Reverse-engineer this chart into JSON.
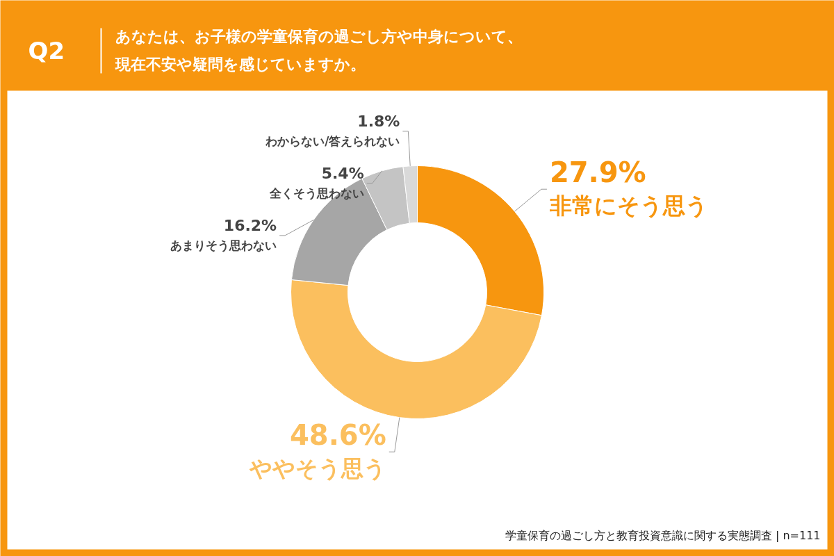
{
  "chart_data": {
    "type": "donut",
    "title": "Q2",
    "subtitle": "あなたは、お子様の学童保育の過ごし方や中身について、現在不安や疑問を感じていますか。",
    "categories": [
      "非常にそう思う",
      "ややそう思う",
      "あまりそう思わない",
      "全くそう思わない",
      "わからない/答えられない"
    ],
    "values": [
      27.9,
      48.6,
      16.2,
      5.4,
      1.8
    ],
    "colors": [
      "#f7960f",
      "#fbbf5e",
      "#a6a6a6",
      "#c4c4c4",
      "#d9d9d9"
    ],
    "value_labels": [
      "27.9%",
      "48.6%",
      "16.2%",
      "5.4%",
      "1.8%"
    ],
    "annotations": [
      "学童保育の過ごし方と教育投資意識に関する実態調査 | n=111"
    ]
  }
}
